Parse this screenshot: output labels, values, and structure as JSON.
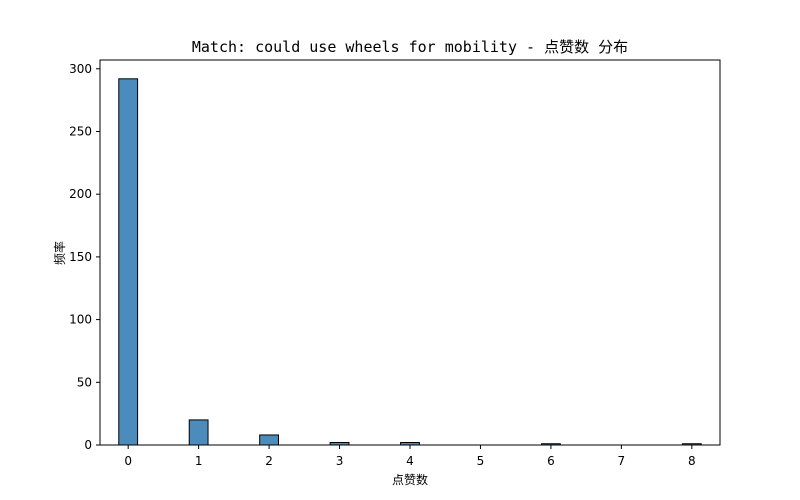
{
  "chart_data": {
    "type": "bar",
    "title": "Match: could use wheels for mobility - 点赞数 分布",
    "xlabel": "点赞数",
    "ylabel": "频率",
    "x": [
      0,
      1,
      2,
      3,
      4,
      6,
      8
    ],
    "values": [
      292,
      20,
      8,
      2,
      2,
      1,
      1
    ],
    "bin_width": 0.267,
    "xlim": [
      -0.4,
      8.4
    ],
    "ylim": [
      0,
      307
    ],
    "xticks": [
      0,
      1,
      2,
      3,
      4,
      5,
      6,
      7,
      8
    ],
    "yticks": [
      0,
      50,
      100,
      150,
      200,
      250,
      300
    ],
    "bar_color": "#4c8cbd",
    "grid": false
  }
}
